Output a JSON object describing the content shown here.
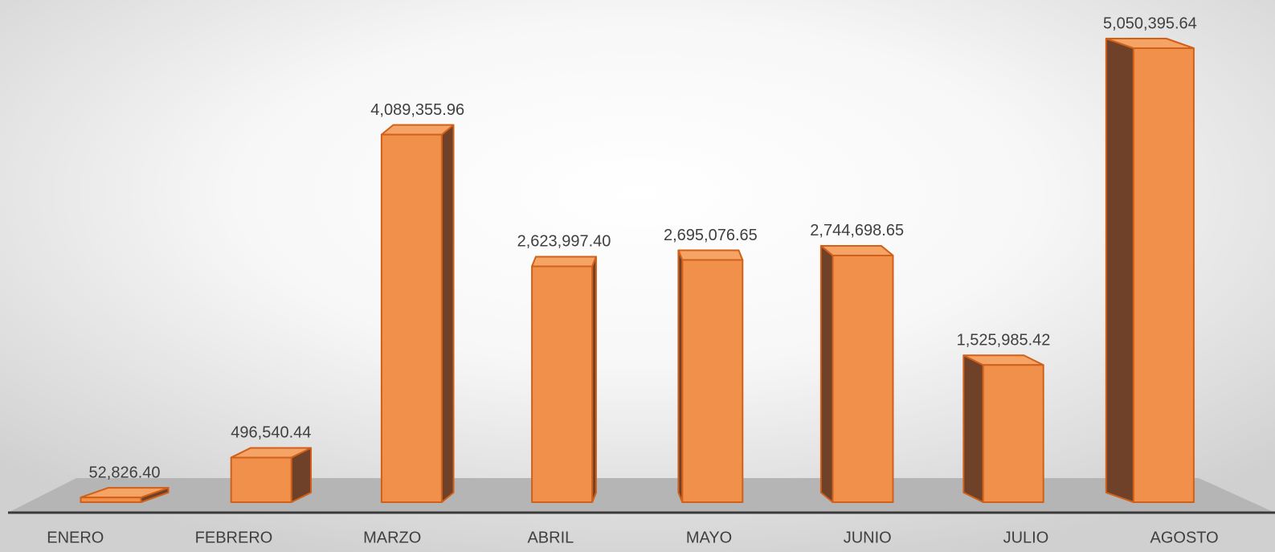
{
  "chart_data": {
    "type": "bar3d",
    "categories": [
      "ENERO",
      "FEBRERO",
      "MARZO",
      "ABRIL",
      "MAYO",
      "JUNIO",
      "JULIO",
      "AGOSTO"
    ],
    "values": [
      52826.4,
      496540.44,
      4089355.96,
      2623997.4,
      2695076.65,
      2744698.65,
      1525985.42,
      5050395.64
    ],
    "value_labels": [
      "52,826.40",
      "496,540.44",
      "4,089,355.96",
      "2,623,997.40",
      "2,695,076.65",
      "2,744,698.65",
      "1,525,985.42",
      "5,050,395.64"
    ],
    "color": "#f0904a"
  }
}
